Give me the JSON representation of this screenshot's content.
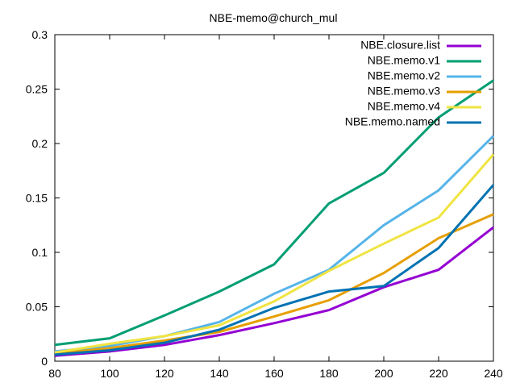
{
  "chart_data": {
    "type": "line",
    "title": "NBE-memo@church_mul",
    "xlabel": "",
    "ylabel": "",
    "xlim": [
      80,
      240
    ],
    "ylim": [
      0,
      0.3
    ],
    "x_ticks": [
      "80",
      "100",
      "120",
      "140",
      "160",
      "180",
      "200",
      "220",
      "240"
    ],
    "y_ticks": [
      "0",
      "0.05",
      "0.1",
      "0.15",
      "0.2",
      "0.25",
      "0.3"
    ],
    "grid": false,
    "legend_position": "top-right",
    "x": [
      80,
      100,
      120,
      140,
      160,
      180,
      200,
      220,
      240
    ],
    "series": [
      {
        "name": "NBE.closure.list",
        "color": "#9400d3",
        "values": [
          0.005,
          0.009,
          0.015,
          0.024,
          0.035,
          0.047,
          0.068,
          0.084,
          0.123
        ]
      },
      {
        "name": "NBE.memo.v1",
        "color": "#009e73",
        "values": [
          0.015,
          0.021,
          0.042,
          0.064,
          0.089,
          0.145,
          0.173,
          0.224,
          0.258
        ]
      },
      {
        "name": "NBE.memo.v2",
        "color": "#56b4e9",
        "values": [
          0.009,
          0.014,
          0.023,
          0.036,
          0.062,
          0.084,
          0.125,
          0.157,
          0.207
        ]
      },
      {
        "name": "NBE.memo.v3",
        "color": "#e69f00",
        "values": [
          0.007,
          0.012,
          0.019,
          0.027,
          0.041,
          0.056,
          0.081,
          0.113,
          0.135
        ]
      },
      {
        "name": "NBE.memo.v4",
        "color": "#f0e442",
        "values": [
          0.008,
          0.016,
          0.023,
          0.033,
          0.055,
          0.083,
          0.108,
          0.132,
          0.19
        ]
      },
      {
        "name": "NBE.memo.named",
        "color": "#0072b2",
        "values": [
          0.006,
          0.01,
          0.017,
          0.029,
          0.049,
          0.064,
          0.069,
          0.104,
          0.162
        ]
      }
    ]
  }
}
